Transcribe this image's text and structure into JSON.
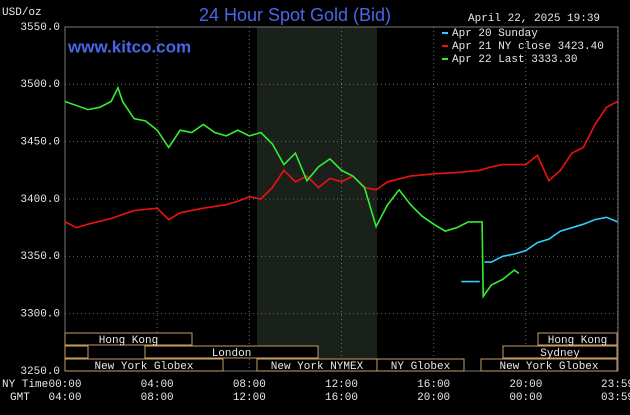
{
  "chart_data": {
    "type": "line",
    "title": "24 Hour Spot Gold (Bid)",
    "timestamp": "April 22, 2025 19:39",
    "unit_label": "USD/oz",
    "site": "www.kitco.com",
    "x_row_label": "NY Time",
    "x2_row_label": "GMT",
    "xlim": [
      0,
      24
    ],
    "xticks": [
      {
        "value": 0,
        "label": "00:00"
      },
      {
        "value": 4,
        "label": "04:00"
      },
      {
        "value": 8,
        "label": "08:00"
      },
      {
        "value": 12,
        "label": "12:00"
      },
      {
        "value": 16,
        "label": "16:00"
      },
      {
        "value": 20,
        "label": "20:00"
      },
      {
        "value": 23.98,
        "label": "23:59"
      }
    ],
    "x2_labels": [
      "04:00",
      "08:00",
      "12:00",
      "16:00",
      "20:00",
      "00:00",
      "03:59"
    ],
    "ylim": [
      3250,
      3550
    ],
    "yticks": [
      {
        "value": 3250,
        "label": "3250.0"
      },
      {
        "value": 3300,
        "label": "3300.0"
      },
      {
        "value": 3350,
        "label": "3350.0"
      },
      {
        "value": 3400,
        "label": "3400.0"
      },
      {
        "value": 3450,
        "label": "3450.0"
      },
      {
        "value": 3500,
        "label": "3500.0"
      },
      {
        "value": 3550,
        "label": "3550.0"
      }
    ],
    "grid": true,
    "series": [
      {
        "name": "Apr 20 Sunday",
        "color": "#33ccff",
        "x": [
          17.2,
          18.0,
          null,
          18.2,
          18.5,
          19.0,
          19.5,
          20.0,
          20.5,
          21.0,
          21.5,
          22.0,
          22.5,
          23.0,
          23.5,
          23.98
        ],
        "values": [
          3328,
          3328,
          null,
          3345,
          3345,
          3350,
          3352,
          3355,
          3362,
          3365,
          3372,
          3375,
          3378,
          3382,
          3384,
          3380
        ]
      },
      {
        "name": "Apr 21 NY close 3423.40",
        "color": "#ee1111",
        "x": [
          0,
          0.5,
          1,
          2,
          3,
          4,
          4.5,
          5,
          6,
          7,
          7.5,
          8,
          8.5,
          9,
          9.5,
          10,
          10.5,
          11,
          11.5,
          12,
          12.5,
          13,
          13.5,
          14,
          15,
          16,
          17,
          18,
          18.5,
          19,
          20,
          20.5,
          21,
          21.5,
          22,
          22.5,
          23,
          23.5,
          23.98
        ],
        "values": [
          3380,
          3375,
          3378,
          3383,
          3390,
          3392,
          3382,
          3388,
          3392,
          3395,
          3398,
          3402,
          3400,
          3410,
          3425,
          3415,
          3420,
          3410,
          3418,
          3415,
          3420,
          3410,
          3408,
          3415,
          3420,
          3422,
          3423,
          3425,
          3428,
          3430,
          3430,
          3438,
          3416,
          3425,
          3440,
          3445,
          3465,
          3480,
          3485
        ]
      },
      {
        "name": "Apr 22 Last 3333.30",
        "color": "#33ee33",
        "x": [
          0,
          1,
          1.5,
          2,
          2.3,
          2.5,
          3,
          3.5,
          4,
          4.5,
          5,
          5.5,
          6,
          6.5,
          7,
          7.5,
          8,
          8.5,
          9,
          9.5,
          10,
          10.5,
          11,
          11.5,
          12,
          12.5,
          13,
          13.5,
          14,
          14.5,
          15,
          15.5,
          16,
          16.5,
          17,
          17.5,
          18.1,
          18.15,
          18.5,
          19,
          19.5,
          19.7
        ],
        "values": [
          3485,
          3478,
          3480,
          3485,
          3497,
          3485,
          3470,
          3468,
          3460,
          3445,
          3460,
          3458,
          3465,
          3458,
          3455,
          3460,
          3455,
          3458,
          3448,
          3430,
          3440,
          3416,
          3428,
          3435,
          3425,
          3420,
          3410,
          3376,
          3395,
          3408,
          3395,
          3385,
          3378,
          3372,
          3375,
          3380,
          3380,
          3315,
          3325,
          3330,
          3338,
          3335
        ]
      }
    ],
    "sessions": [
      "Hong Kong",
      "London",
      "New York Globex",
      "New York NYMEX",
      "NY Globex",
      "Hong Kong",
      "Sydney",
      "New York Globex"
    ]
  }
}
